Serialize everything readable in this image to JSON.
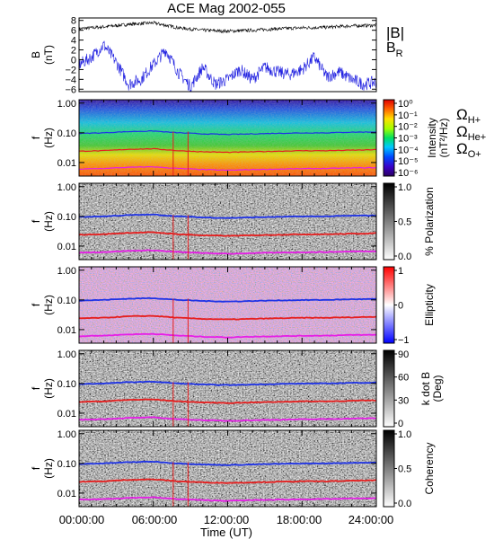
{
  "title": "ACE Mag 2002-055",
  "time_axis": {
    "ticks": [
      "00:00:00",
      "06:00:00",
      "12:00:00",
      "18:00:00",
      "24:00:00"
    ],
    "label": "Time (UT)"
  },
  "colors": {
    "H_plus": "#1e32e6",
    "He_plus": "#e61e1e",
    "O_plus": "#e61ee6",
    "B_mag": "#000000",
    "B_R": "#2020e0"
  },
  "chart_data": [
    {
      "type": "line",
      "panel": "B",
      "ylabel_line1": "B",
      "ylabel_line2": "(nT)",
      "ylim": [
        -6.5,
        8.5
      ],
      "y_ticks": [
        "8",
        "6",
        "4",
        "2",
        "0",
        "−2",
        "−4",
        "−6"
      ],
      "legend": [
        "|B|",
        "B_R"
      ],
      "legend_B_main": "B",
      "legend_B_sub": "R",
      "series": [
        {
          "name": "|B|",
          "x_hours": [
            0,
            2,
            4,
            6,
            7,
            8,
            10,
            12,
            14,
            16,
            18,
            20,
            22,
            24
          ],
          "values": [
            6.3,
            6.7,
            7.2,
            7.5,
            7.0,
            6.5,
            6.0,
            5.8,
            6.0,
            6.3,
            6.5,
            6.6,
            6.9,
            7.0
          ]
        },
        {
          "name": "B_R",
          "x_hours": [
            0,
            1,
            2,
            3,
            4,
            5,
            6,
            7,
            8,
            9,
            10,
            11,
            12,
            13,
            14,
            15,
            16,
            17,
            18,
            19,
            20,
            21,
            22,
            23,
            24
          ],
          "values": [
            -1.0,
            0.5,
            3.0,
            -0.5,
            -5.0,
            -4.0,
            -1.0,
            2.0,
            -2.5,
            -5.5,
            -1.5,
            -5.0,
            -4.0,
            -2.0,
            -4.0,
            -1.5,
            -2.5,
            -3.0,
            -2.0,
            0.5,
            -3.5,
            -2.5,
            -4.0,
            -5.0,
            -4.5
          ]
        }
      ]
    },
    {
      "type": "heatmap",
      "panel": "intensity",
      "ylabel_line1": "f",
      "ylabel_line2": "(Hz)",
      "y_ticks": [
        "1.00",
        "0.10",
        "0.01"
      ],
      "colorbar_label_line1": "Intensity",
      "colorbar_label_line2": "(nT²/Hz)",
      "colorbar_ticks": [
        "10⁰",
        "10⁻¹",
        "10⁻²",
        "10⁻³",
        "10⁻⁴",
        "10⁻⁵",
        "10⁻⁶"
      ],
      "colormap": "rainbow",
      "legend": [
        {
          "main": "Ω",
          "sub": "H+"
        },
        {
          "main": "Ω",
          "sub": "He+"
        },
        {
          "main": "Ω",
          "sub": "O+"
        }
      ]
    },
    {
      "type": "heatmap",
      "panel": "polarization",
      "ylabel_line1": "f",
      "ylabel_line2": "(Hz)",
      "y_ticks": [
        "1.00",
        "0.10",
        "0.01"
      ],
      "colorbar_label": "% Polarization",
      "colorbar_ticks": [
        "1.0",
        "0.5",
        "0.0"
      ],
      "colormap": "gray"
    },
    {
      "type": "heatmap",
      "panel": "ellipticity",
      "ylabel_line1": "f",
      "ylabel_line2": "(Hz)",
      "y_ticks": [
        "1.00",
        "0.10",
        "0.01"
      ],
      "colorbar_label": "Ellipticity",
      "colorbar_ticks": [
        "1",
        "0",
        "−1"
      ],
      "colormap": "bluewhitered"
    },
    {
      "type": "heatmap",
      "panel": "kdotb",
      "ylabel_line1": "f",
      "ylabel_line2": "(Hz)",
      "y_ticks": [
        "1.00",
        "0.10",
        "0.01"
      ],
      "colorbar_label_line1": "k dot B",
      "colorbar_label_line2": "(Deg)",
      "colorbar_ticks": [
        "90",
        "60",
        "30",
        "0"
      ],
      "colormap": "gray"
    },
    {
      "type": "heatmap",
      "panel": "coherency",
      "ylabel_line1": "f",
      "ylabel_line2": "(Hz)",
      "y_ticks": [
        "1.00",
        "0.10",
        "0.01"
      ],
      "colorbar_label": "Coherency",
      "colorbar_ticks": [
        "1.0",
        "0.5",
        "0.0"
      ],
      "colormap": "gray"
    }
  ],
  "gyrofrequencies_hz": {
    "x_hours": [
      0,
      2,
      4,
      6,
      7,
      8,
      10,
      12,
      14,
      16,
      18,
      20,
      22,
      24
    ],
    "H_plus": [
      0.095,
      0.1,
      0.11,
      0.115,
      0.107,
      0.1,
      0.092,
      0.088,
      0.092,
      0.096,
      0.099,
      0.1,
      0.105,
      0.107
    ],
    "He_plus": [
      0.024,
      0.025,
      0.028,
      0.029,
      0.027,
      0.025,
      0.023,
      0.022,
      0.023,
      0.024,
      0.025,
      0.025,
      0.026,
      0.027
    ],
    "O_plus": [
      0.006,
      0.0063,
      0.0069,
      0.0072,
      0.0067,
      0.0063,
      0.0058,
      0.0055,
      0.0058,
      0.006,
      0.0062,
      0.0063,
      0.0066,
      0.0067
    ]
  }
}
